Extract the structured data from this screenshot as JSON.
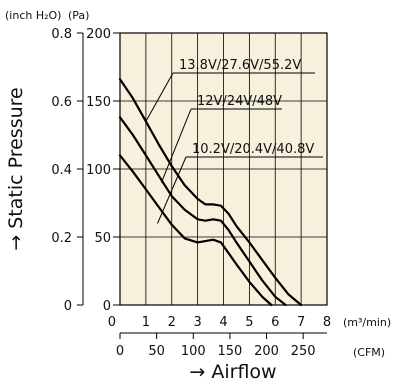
{
  "chart_data": {
    "type": "line",
    "title": "",
    "xlabel": "→ Airflow",
    "ylabel": "→ Static Pressure",
    "plot_background": "#f7f0dd",
    "line_color": "#000000",
    "grid": true,
    "x_unit_primary": "(m³/min)",
    "x_unit_secondary": "(CFM)",
    "y_unit_primary": "(Pa)",
    "y_unit_secondary": "(inch H₂O)",
    "xlim": [
      0,
      8
    ],
    "ylim": [
      0,
      200
    ],
    "x_ticks": [
      "1",
      "2",
      "3",
      "4",
      "5",
      "6",
      "7",
      "8"
    ],
    "x_ticks_origin": "0",
    "cfm_ticks": [
      "0",
      "50",
      "100",
      "150",
      "200",
      "250"
    ],
    "y_ticks": [
      "0",
      "50",
      "100",
      "150",
      "200"
    ],
    "y_inch_ticks": [
      "0",
      "0.2",
      "0.4",
      "0.6",
      "0.8"
    ],
    "series": [
      {
        "name": "13.8V/27.6V/55.2V",
        "x": [
          0,
          0.5,
          1,
          1.5,
          2,
          2.5,
          3,
          3.3,
          3.6,
          3.9,
          4.2,
          4.5,
          5,
          5.5,
          6,
          6.5,
          7.0
        ],
        "y": [
          166,
          152,
          135,
          118,
          102,
          88,
          78,
          74,
          74,
          73,
          67,
          58,
          46,
          33,
          20,
          8,
          0
        ]
      },
      {
        "name": "12V/24V/48V",
        "x": [
          0,
          0.5,
          1,
          1.5,
          2,
          2.5,
          3,
          3.3,
          3.6,
          3.9,
          4.2,
          4.5,
          5,
          5.5,
          6,
          6.4
        ],
        "y": [
          138,
          125,
          110,
          95,
          80,
          70,
          63,
          62,
          63,
          62,
          55,
          46,
          32,
          18,
          6,
          0
        ]
      },
      {
        "name": "10.2V/20.4V/40.8V",
        "x": [
          0,
          0.5,
          1,
          1.5,
          2,
          2.5,
          3,
          3.3,
          3.6,
          3.9,
          4.2,
          4.5,
          5,
          5.5,
          5.85
        ],
        "y": [
          110,
          98,
          85,
          72,
          59,
          49,
          46,
          47,
          48,
          46,
          38,
          30,
          17,
          6,
          0
        ]
      }
    ]
  }
}
